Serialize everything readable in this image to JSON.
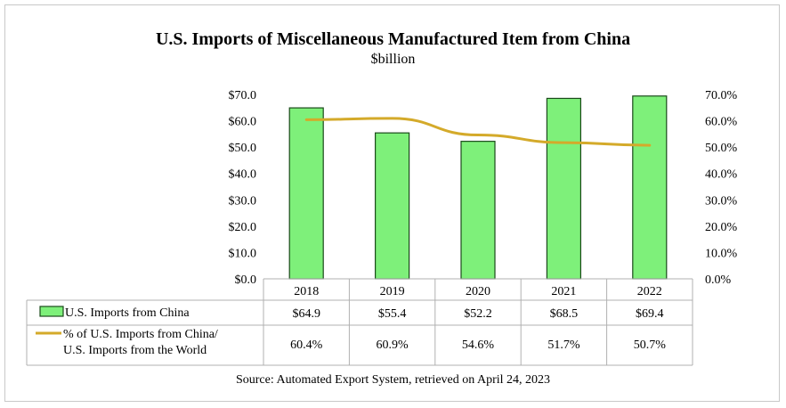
{
  "chart_data": {
    "type": "bar",
    "title": "U.S. Imports of Miscellaneous Manufactured Item from China",
    "subtitle": "$billion",
    "categories": [
      "2018",
      "2019",
      "2020",
      "2021",
      "2022"
    ],
    "series": [
      {
        "name": "U.S. Imports from China",
        "type": "bar",
        "axis": "left",
        "values": [
          64.9,
          55.4,
          52.2,
          68.5,
          69.4
        ],
        "labels": [
          "$64.9",
          "$55.4",
          "$52.2",
          "$68.5",
          "$69.4"
        ],
        "color": "#7ef07a"
      },
      {
        "name": "% of U.S. Imports from China/ U.S. Imports from the World",
        "name_lines": [
          "% of U.S. Imports from China/",
          "U.S. Imports from the World"
        ],
        "type": "line",
        "axis": "right",
        "values": [
          60.4,
          60.9,
          54.6,
          51.7,
          50.7
        ],
        "labels": [
          "60.4%",
          "60.9%",
          "54.6%",
          "51.7%",
          "50.7%"
        ],
        "color": "#d4aa2a"
      }
    ],
    "left_axis": {
      "ylim": [
        0,
        70
      ],
      "ticks": [
        "$0.0",
        "$10.0",
        "$20.0",
        "$30.0",
        "$40.0",
        "$50.0",
        "$60.0",
        "$70.0"
      ]
    },
    "right_axis": {
      "ylim": [
        0,
        70
      ],
      "ticks": [
        "0.0%",
        "10.0%",
        "20.0%",
        "30.0%",
        "40.0%",
        "50.0%",
        "60.0%",
        "70.0%"
      ]
    },
    "grid": false,
    "legend": "data-table"
  },
  "source": "Source: Automated Export System, retrieved on April 24, 2023"
}
